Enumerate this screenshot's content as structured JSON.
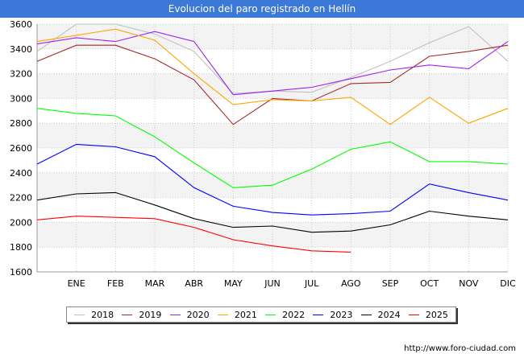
{
  "title": "Evolucion del paro registrado en Hellín",
  "source": "http://www.foro-ciudad.com",
  "chart_data": {
    "type": "line",
    "title": "Evolucion del paro registrado en Hellín",
    "xlabel": "",
    "ylabel": "",
    "categories": [
      "",
      "ENE",
      "FEB",
      "MAR",
      "ABR",
      "MAY",
      "JUN",
      "JUL",
      "AGO",
      "SEP",
      "OCT",
      "NOV",
      "DIC"
    ],
    "ylim": [
      1600,
      3600
    ],
    "yticks": [
      1600,
      1800,
      2000,
      2200,
      2400,
      2600,
      2800,
      3000,
      3200,
      3400,
      3600
    ],
    "grid": true,
    "legend_position": "bottom",
    "series": [
      {
        "name": "2018",
        "color": "#c0c0c0",
        "values": [
          3380,
          3600,
          3600,
          3520,
          3380,
          3040,
          3060,
          3050,
          3170,
          3300,
          3450,
          3580,
          3300
        ]
      },
      {
        "name": "2019",
        "color": "#a52a2a",
        "values": [
          3300,
          3430,
          3430,
          3320,
          3150,
          2790,
          3000,
          2980,
          3120,
          3130,
          3340,
          3380,
          3430
        ]
      },
      {
        "name": "2020",
        "color": "#a020f0",
        "values": [
          3440,
          3490,
          3460,
          3540,
          3460,
          3030,
          3060,
          3090,
          3160,
          3230,
          3270,
          3240,
          3460
        ]
      },
      {
        "name": "2021",
        "color": "#ffa500",
        "values": [
          3460,
          3510,
          3560,
          3470,
          3200,
          2950,
          2990,
          2980,
          3010,
          2790,
          3010,
          2800,
          2920
        ]
      },
      {
        "name": "2022",
        "color": "#00ff00",
        "values": [
          2920,
          2880,
          2860,
          2690,
          2480,
          2280,
          2300,
          2430,
          2590,
          2650,
          2490,
          2490,
          2470
        ]
      },
      {
        "name": "2023",
        "color": "#0000ff",
        "values": [
          2470,
          2630,
          2610,
          2530,
          2280,
          2130,
          2080,
          2060,
          2070,
          2090,
          2310,
          2240,
          2180
        ]
      },
      {
        "name": "2024",
        "color": "#000000",
        "values": [
          2180,
          2230,
          2240,
          2140,
          2030,
          1960,
          1970,
          1920,
          1930,
          1980,
          2090,
          2050,
          2020
        ]
      },
      {
        "name": "2025",
        "color": "#ff0000",
        "values": [
          2020,
          2050,
          2040,
          2030,
          1960,
          1860,
          1810,
          1770,
          1760,
          null,
          null,
          null,
          null
        ]
      }
    ]
  }
}
